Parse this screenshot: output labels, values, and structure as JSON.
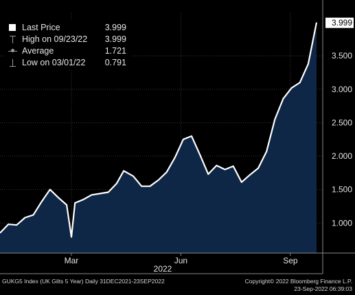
{
  "chart_data": {
    "type": "area",
    "series": [
      {
        "name": "Last Price",
        "x": [
          "2021-12-31",
          "2022-01-07",
          "2022-01-14",
          "2022-01-21",
          "2022-01-28",
          "2022-02-04",
          "2022-02-11",
          "2022-02-18",
          "2022-02-25",
          "2022-03-01",
          "2022-03-04",
          "2022-03-11",
          "2022-03-18",
          "2022-03-25",
          "2022-04-01",
          "2022-04-08",
          "2022-04-14",
          "2022-04-22",
          "2022-04-29",
          "2022-05-06",
          "2022-05-13",
          "2022-05-20",
          "2022-05-27",
          "2022-06-03",
          "2022-06-10",
          "2022-06-17",
          "2022-06-24",
          "2022-07-01",
          "2022-07-08",
          "2022-07-15",
          "2022-07-22",
          "2022-07-29",
          "2022-08-05",
          "2022-08-12",
          "2022-08-19",
          "2022-08-26",
          "2022-09-02",
          "2022-09-09",
          "2022-09-16",
          "2022-09-23"
        ],
        "values": [
          0.85,
          0.98,
          0.97,
          1.08,
          1.12,
          1.32,
          1.5,
          1.38,
          1.27,
          0.791,
          1.3,
          1.35,
          1.42,
          1.44,
          1.46,
          1.59,
          1.78,
          1.7,
          1.55,
          1.55,
          1.64,
          1.76,
          1.98,
          2.25,
          2.3,
          2.02,
          1.73,
          1.86,
          1.8,
          1.85,
          1.61,
          1.72,
          1.82,
          2.07,
          2.55,
          2.86,
          3.02,
          3.1,
          3.38,
          3.999
        ]
      }
    ],
    "ylim": [
      0.55,
      4.15
    ],
    "y_ticks": [
      "1.000",
      "1.500",
      "2.000",
      "2.500",
      "3.000",
      "3.500"
    ],
    "x_ticks": [
      {
        "label": "Mar",
        "date": "2022-03-01"
      },
      {
        "label": "Jun",
        "date": "2022-06-01"
      },
      {
        "label": "Sep",
        "date": "2022-09-01"
      }
    ],
    "x_year_label": "2022",
    "last_price_tag": "3.999",
    "fill_color": "#0f2746",
    "line_color": "#ffffff",
    "grid": true,
    "legend_position": "top-left"
  },
  "legend": {
    "rows": [
      {
        "label": "Last Price",
        "value": "3.999"
      },
      {
        "label": "High on 09/23/22",
        "value": "3.999"
      },
      {
        "label": "Average",
        "value": "1.721"
      },
      {
        "label": "Low on 03/01/22",
        "value": "0.791"
      }
    ]
  },
  "footer": {
    "left": "GUKG5 Index (UK Gilts 5 Year)  Daily 31DEC2021-23SEP2022",
    "right_line1": "Copyright© 2022 Bloomberg Finance L.P.",
    "right_line2": "23-Sep-2022 06:39:03"
  }
}
